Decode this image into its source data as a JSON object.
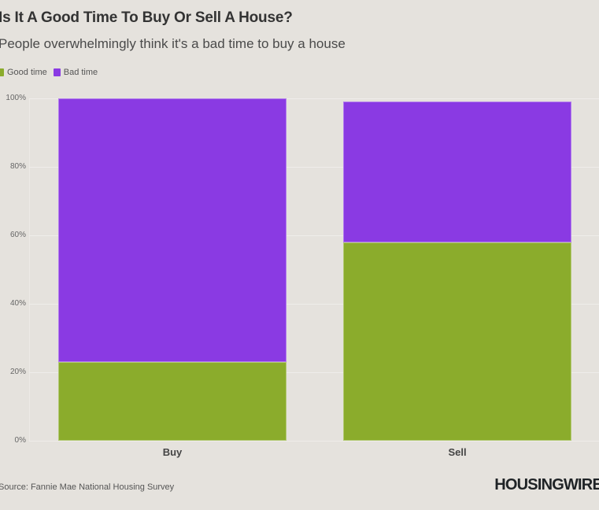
{
  "header": {
    "title": "Is It A Good Time To Buy Or Sell A House?",
    "subtitle": "People overwhelmingly think it's a bad time to buy a house"
  },
  "legend": [
    {
      "label": "Good time",
      "color": "#8bac2c"
    },
    {
      "label": "Bad time",
      "color": "#8a3ae3"
    }
  ],
  "axis": {
    "y_ticks": [
      "100%",
      "80%",
      "60%",
      "40%",
      "20%",
      "0%"
    ],
    "x_labels": [
      "Buy",
      "Sell"
    ]
  },
  "footer": {
    "source": "Source: Fannie Mae National Housing Survey",
    "logo": "HOUSINGWIRE"
  },
  "chart_data": {
    "type": "bar",
    "stacked": true,
    "title": "Is It A Good Time To Buy Or Sell A House?",
    "subtitle": "People overwhelmingly think it's a bad time to buy a house",
    "categories": [
      "Buy",
      "Sell"
    ],
    "series": [
      {
        "name": "Good time",
        "color": "#8bac2c",
        "values": [
          23,
          58
        ]
      },
      {
        "name": "Bad time",
        "color": "#8a3ae3",
        "values": [
          77,
          41
        ]
      }
    ],
    "xlabel": "",
    "ylabel": "",
    "ylim": [
      0,
      100
    ],
    "y_tick_format": "percent",
    "grid": true,
    "legend_position": "top-left",
    "source": "Source: Fannie Mae National Housing Survey"
  }
}
